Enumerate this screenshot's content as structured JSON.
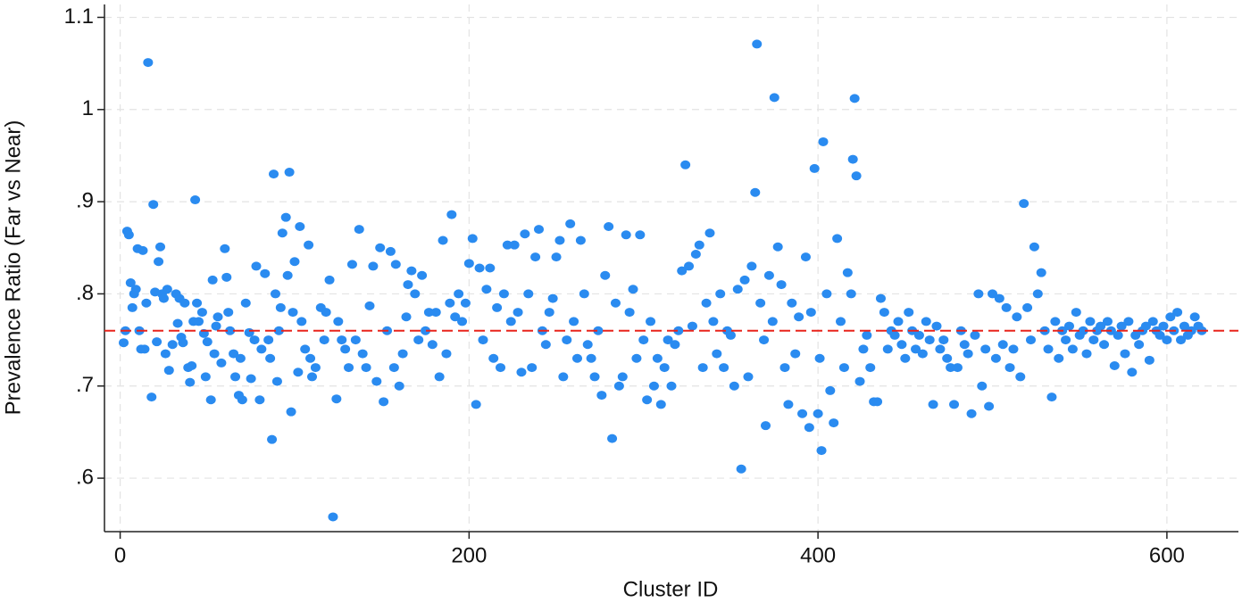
{
  "chart_data": {
    "type": "scatter",
    "x_label": "Cluster ID",
    "y_label": "Prevalence Ratio (Far vs Near)",
    "color": "#2a8bf0",
    "grid": true,
    "hline": 0.76,
    "hline_color": "#e8241c",
    "xlim": [
      -9,
      641
    ],
    "ylim": [
      0.542,
      1.114
    ],
    "xticks": [
      0,
      200,
      400,
      600
    ],
    "yticks": [
      {
        "value": 0.6,
        "label": ".6"
      },
      {
        "value": 0.7,
        "label": ".7"
      },
      {
        "value": 0.8,
        "label": ".8"
      },
      {
        "value": 0.9,
        "label": ".9"
      },
      1,
      1.1
    ],
    "x": [
      2,
      3,
      4,
      5,
      6,
      7,
      8,
      9,
      10,
      11,
      12,
      13,
      14,
      15,
      16,
      18,
      19,
      20,
      21,
      22,
      23,
      24,
      25,
      26,
      27,
      28,
      30,
      32,
      33,
      34,
      35,
      36,
      37,
      39,
      40,
      41,
      42,
      43,
      44,
      45,
      47,
      48,
      49,
      50,
      52,
      53,
      54,
      55,
      56,
      58,
      60,
      61,
      62,
      63,
      65,
      66,
      68,
      69,
      70,
      72,
      74,
      75,
      77,
      78,
      80,
      81,
      83,
      85,
      86,
      87,
      88,
      89,
      90,
      91,
      92,
      93,
      95,
      96,
      97,
      98,
      99,
      100,
      102,
      103,
      104,
      106,
      108,
      109,
      110,
      112,
      115,
      117,
      118,
      120,
      122,
      124,
      125,
      127,
      129,
      131,
      133,
      135,
      137,
      139,
      141,
      143,
      145,
      147,
      149,
      151,
      153,
      155,
      157,
      158,
      160,
      162,
      164,
      165,
      167,
      169,
      171,
      173,
      175,
      177,
      179,
      181,
      183,
      185,
      187,
      189,
      190,
      192,
      194,
      196,
      198,
      200,
      202,
      204,
      206,
      208,
      210,
      212,
      214,
      216,
      218,
      220,
      222,
      224,
      226,
      228,
      230,
      232,
      234,
      236,
      238,
      240,
      242,
      244,
      246,
      248,
      250,
      252,
      254,
      256,
      258,
      260,
      262,
      264,
      266,
      268,
      270,
      272,
      274,
      276,
      278,
      280,
      282,
      284,
      286,
      288,
      290,
      292,
      294,
      296,
      298,
      300,
      302,
      304,
      306,
      308,
      310,
      312,
      314,
      316,
      318,
      320,
      322,
      324,
      326,
      328,
      330,
      332,
      334,
      336,
      338,
      340,
      342,
      344,
      346,
      348,
      350,
      352,
      354,
      356,
      358,
      360,
      362,
      364,
      365,
      367,
      369,
      370,
      372,
      374,
      375,
      377,
      379,
      381,
      383,
      385,
      387,
      389,
      391,
      393,
      395,
      396,
      398,
      400,
      401,
      402,
      403,
      405,
      407,
      409,
      411,
      413,
      415,
      417,
      419,
      420,
      421,
      422,
      424,
      426,
      428,
      430,
      432,
      434,
      436,
      438,
      440,
      442,
      444,
      446,
      448,
      450,
      452,
      454,
      456,
      458,
      460,
      462,
      464,
      466,
      468,
      470,
      472,
      474,
      476,
      478,
      480,
      482,
      484,
      486,
      488,
      490,
      492,
      494,
      496,
      498,
      500,
      502,
      504,
      506,
      508,
      510,
      512,
      514,
      516,
      518,
      520,
      522,
      524,
      526,
      528,
      530,
      532,
      534,
      536,
      538,
      540,
      542,
      544,
      546,
      548,
      550,
      552,
      554,
      556,
      558,
      560,
      562,
      564,
      566,
      568,
      570,
      572,
      574,
      576,
      578,
      580,
      582,
      584,
      586,
      588,
      590,
      592,
      594,
      596,
      598,
      600,
      602,
      604,
      606,
      608,
      610,
      612,
      614,
      616,
      618,
      620
    ],
    "values": [
      0.747,
      0.76,
      0.868,
      0.864,
      0.812,
      0.785,
      0.8,
      0.805,
      0.849,
      0.76,
      0.74,
      0.847,
      0.74,
      0.79,
      1.051,
      0.688,
      0.897,
      0.802,
      0.748,
      0.835,
      0.851,
      0.8,
      0.795,
      0.735,
      0.805,
      0.717,
      0.745,
      0.8,
      0.768,
      0.795,
      0.753,
      0.747,
      0.79,
      0.72,
      0.704,
      0.722,
      0.77,
      0.902,
      0.79,
      0.77,
      0.78,
      0.757,
      0.71,
      0.748,
      0.685,
      0.815,
      0.735,
      0.765,
      0.775,
      0.725,
      0.849,
      0.818,
      0.78,
      0.76,
      0.735,
      0.71,
      0.69,
      0.73,
      0.685,
      0.79,
      0.758,
      0.708,
      0.75,
      0.83,
      0.685,
      0.74,
      0.822,
      0.75,
      0.73,
      0.642,
      0.93,
      0.8,
      0.705,
      0.76,
      0.785,
      0.866,
      0.883,
      0.82,
      0.932,
      0.672,
      0.78,
      0.835,
      0.715,
      0.873,
      0.77,
      0.74,
      0.853,
      0.73,
      0.71,
      0.72,
      0.785,
      0.75,
      0.78,
      0.815,
      0.558,
      0.686,
      0.77,
      0.75,
      0.74,
      0.72,
      0.832,
      0.75,
      0.87,
      0.735,
      0.72,
      0.787,
      0.83,
      0.705,
      0.85,
      0.683,
      0.76,
      0.846,
      0.72,
      0.832,
      0.7,
      0.735,
      0.775,
      0.81,
      0.825,
      0.8,
      0.75,
      0.82,
      0.76,
      0.78,
      0.745,
      0.78,
      0.71,
      0.858,
      0.735,
      0.79,
      0.886,
      0.775,
      0.8,
      0.77,
      0.79,
      0.833,
      0.86,
      0.68,
      0.828,
      0.75,
      0.805,
      0.828,
      0.73,
      0.785,
      0.72,
      0.8,
      0.853,
      0.77,
      0.853,
      0.78,
      0.715,
      0.865,
      0.8,
      0.72,
      0.84,
      0.87,
      0.76,
      0.745,
      0.78,
      0.795,
      0.84,
      0.858,
      0.71,
      0.75,
      0.876,
      0.77,
      0.73,
      0.858,
      0.8,
      0.745,
      0.73,
      0.71,
      0.76,
      0.69,
      0.82,
      0.873,
      0.643,
      0.79,
      0.7,
      0.71,
      0.864,
      0.78,
      0.805,
      0.73,
      0.864,
      0.75,
      0.685,
      0.77,
      0.7,
      0.73,
      0.68,
      0.72,
      0.75,
      0.7,
      0.745,
      0.76,
      0.825,
      0.94,
      0.83,
      0.765,
      0.843,
      0.853,
      0.72,
      0.79,
      0.866,
      0.77,
      0.735,
      0.8,
      0.72,
      0.76,
      0.755,
      0.7,
      0.805,
      0.61,
      0.815,
      0.71,
      0.83,
      0.91,
      1.071,
      0.79,
      0.75,
      0.657,
      0.82,
      0.77,
      1.013,
      0.851,
      0.81,
      0.72,
      0.68,
      0.79,
      0.735,
      0.775,
      0.67,
      0.84,
      0.655,
      0.78,
      0.936,
      0.67,
      0.73,
      0.63,
      0.965,
      0.8,
      0.695,
      0.66,
      0.86,
      0.77,
      0.72,
      0.823,
      0.8,
      0.946,
      1.012,
      0.928,
      0.705,
      0.74,
      0.755,
      0.72,
      0.683,
      0.683,
      0.795,
      0.78,
      0.74,
      0.76,
      0.755,
      0.77,
      0.745,
      0.73,
      0.78,
      0.76,
      0.74,
      0.755,
      0.735,
      0.77,
      0.75,
      0.68,
      0.765,
      0.74,
      0.75,
      0.73,
      0.72,
      0.68,
      0.72,
      0.76,
      0.745,
      0.735,
      0.67,
      0.755,
      0.8,
      0.7,
      0.74,
      0.678,
      0.8,
      0.73,
      0.795,
      0.745,
      0.785,
      0.72,
      0.74,
      0.775,
      0.71,
      0.898,
      0.785,
      0.75,
      0.851,
      0.8,
      0.823,
      0.76,
      0.74,
      0.688,
      0.77,
      0.73,
      0.76,
      0.75,
      0.765,
      0.74,
      0.78,
      0.755,
      0.76,
      0.735,
      0.77,
      0.75,
      0.76,
      0.765,
      0.745,
      0.77,
      0.76,
      0.722,
      0.755,
      0.765,
      0.735,
      0.77,
      0.715,
      0.755,
      0.745,
      0.76,
      0.765,
      0.728,
      0.77,
      0.76,
      0.755,
      0.765,
      0.75,
      0.775,
      0.76,
      0.78,
      0.75,
      0.765,
      0.755,
      0.76,
      0.775,
      0.765,
      0.76
    ]
  }
}
